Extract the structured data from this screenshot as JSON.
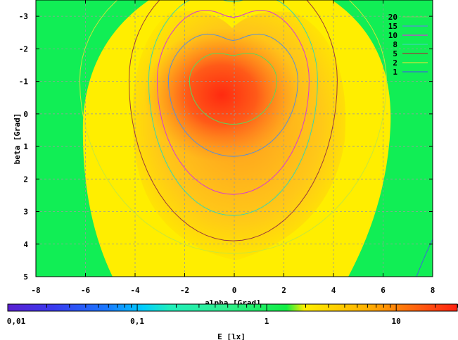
{
  "chart_data": {
    "type": "heatmap",
    "xlabel": "alpha [Grad]",
    "ylabel": "beta [Grad]",
    "colorbar_label": "E [lx]",
    "xlim": [
      -8,
      8
    ],
    "ylim": [
      5,
      -3.5
    ],
    "x_ticks": [
      -8,
      -6,
      -4,
      -2,
      0,
      2,
      4,
      6,
      8
    ],
    "y_ticks": [
      -3,
      -2,
      -1,
      0,
      1,
      2,
      3,
      4,
      5
    ],
    "x_tick_labels": [
      "-8",
      "-6",
      "-4",
      "-2",
      "0",
      "2",
      "4",
      "6",
      "8"
    ],
    "y_tick_labels": [
      "-3",
      "-2",
      "-1",
      "0",
      "1",
      "2",
      "3",
      "4",
      "5"
    ],
    "grid": true,
    "colorbar": {
      "scale": "log",
      "range": [
        0.01,
        30
      ],
      "tick_values": [
        0.01,
        0.1,
        1,
        10
      ],
      "tick_labels": [
        "0,01",
        "0,1",
        "1",
        "10"
      ]
    },
    "contour_levels": [
      {
        "name": "20",
        "level": 20,
        "color": "#5cd65c"
      },
      {
        "name": "15",
        "level": 15,
        "color": "#5b8fd6"
      },
      {
        "name": "10",
        "level": 10,
        "color": "#d63ad6"
      },
      {
        "name": "8",
        "level": 8,
        "color": "#3ad6b0"
      },
      {
        "name": "5",
        "level": 5,
        "color": "#9b3a3a"
      },
      {
        "name": "2",
        "level": 2,
        "color": "#c8e63a"
      },
      {
        "name": "1",
        "level": 1,
        "color": "#3a6ad6"
      }
    ],
    "peak_value": 28,
    "peak_location": {
      "alpha": -0.5,
      "beta": -0.6
    },
    "legend_position": "top-right"
  },
  "colors": {
    "background_low": "#11ee55",
    "mid": "#ffff00",
    "high": "#ff2a1a"
  }
}
